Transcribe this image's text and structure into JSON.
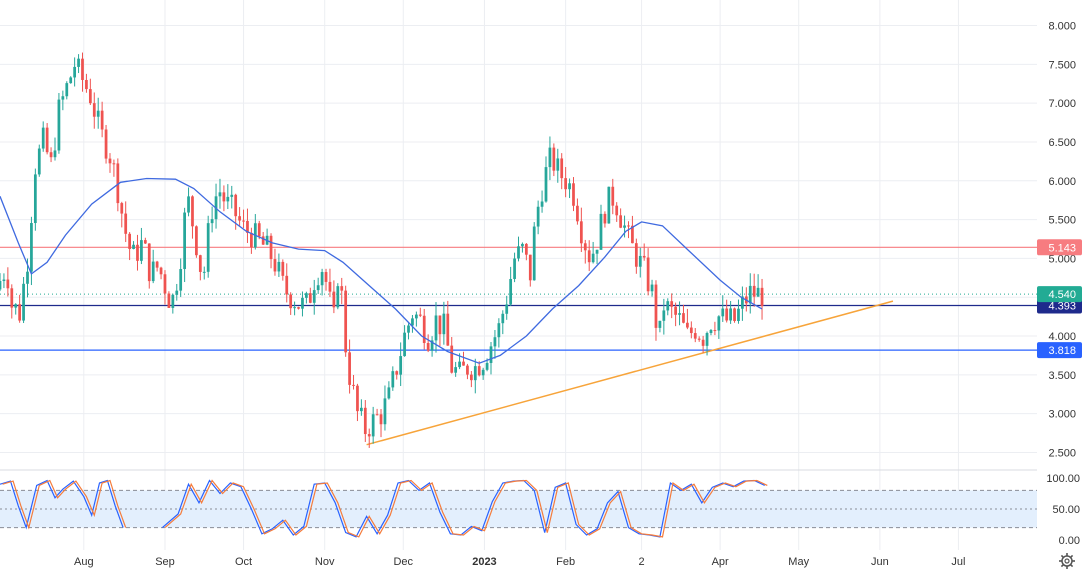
{
  "chart_data": {
    "type": "candlestick",
    "price_axis": {
      "range": [
        2.3,
        8.2
      ],
      "ticks": [
        "8.000",
        "7.500",
        "7.000",
        "6.500",
        "6.000",
        "5.500",
        "5.000",
        "4.500",
        "4.000",
        "3.500",
        "3.000",
        "2.500"
      ]
    },
    "time_axis": {
      "range": [
        "2022-06-30",
        "2023-07-31"
      ],
      "ticks": [
        {
          "label": "Aug",
          "date": "2022-08-01",
          "bold": false
        },
        {
          "label": "Sep",
          "date": "2022-09-01",
          "bold": false
        },
        {
          "label": "Oct",
          "date": "2022-10-01",
          "bold": false
        },
        {
          "label": "Nov",
          "date": "2022-11-01",
          "bold": false
        },
        {
          "label": "Dec",
          "date": "2022-12-01",
          "bold": false
        },
        {
          "label": "2023",
          "date": "2023-01-01",
          "bold": true
        },
        {
          "label": "Feb",
          "date": "2023-02-01",
          "bold": false
        },
        {
          "label": "2",
          "date": "2023-03-02",
          "bold": false
        },
        {
          "label": "Apr",
          "date": "2023-04-01",
          "bold": false
        },
        {
          "label": "May",
          "date": "2023-05-01",
          "bold": false
        },
        {
          "label": "Jun",
          "date": "2023-06-01",
          "bold": false
        },
        {
          "label": "Jul",
          "date": "2023-07-01",
          "bold": false
        }
      ]
    },
    "price_path": [
      [
        "2022-06-30",
        4.6
      ],
      [
        "2022-07-04",
        4.9
      ],
      [
        "2022-07-06",
        4.4
      ],
      [
        "2022-07-09",
        4.3
      ],
      [
        "2022-07-12",
        5.0
      ],
      [
        "2022-07-15",
        6.2
      ],
      [
        "2022-07-18",
        6.5
      ],
      [
        "2022-07-21",
        6.2
      ],
      [
        "2022-07-24",
        6.9
      ],
      [
        "2022-07-27",
        7.2
      ],
      [
        "2022-07-30",
        7.5
      ],
      [
        "2022-08-02",
        7.3
      ],
      [
        "2022-08-05",
        7.1
      ],
      [
        "2022-08-09",
        6.6
      ],
      [
        "2022-08-12",
        6.4
      ],
      [
        "2022-08-15",
        6.0
      ],
      [
        "2022-08-18",
        5.4
      ],
      [
        "2022-08-21",
        5.0
      ],
      [
        "2022-08-25",
        5.2
      ],
      [
        "2022-08-28",
        4.8
      ],
      [
        "2022-08-31",
        4.9
      ],
      [
        "2022-09-03",
        4.6
      ],
      [
        "2022-09-05",
        4.4
      ],
      [
        "2022-09-08",
        4.9
      ],
      [
        "2022-09-11",
        5.8
      ],
      [
        "2022-09-14",
        5.3
      ],
      [
        "2022-09-17",
        4.7
      ],
      [
        "2022-09-20",
        5.6
      ],
      [
        "2022-09-23",
        5.9
      ],
      [
        "2022-09-26",
        5.7
      ],
      [
        "2022-09-29",
        5.6
      ],
      [
        "2022-10-02",
        5.4
      ],
      [
        "2022-10-06",
        5.3
      ],
      [
        "2022-10-09",
        5.2
      ],
      [
        "2022-10-12",
        5.1
      ],
      [
        "2022-10-15",
        4.9
      ],
      [
        "2022-10-18",
        4.6
      ],
      [
        "2022-10-21",
        4.5
      ],
      [
        "2022-10-24",
        4.4
      ],
      [
        "2022-10-27",
        4.4
      ],
      [
        "2022-10-30",
        4.8
      ],
      [
        "2022-11-02",
        4.9
      ],
      [
        "2022-11-04",
        4.5
      ],
      [
        "2022-11-06",
        4.2
      ],
      [
        "2022-11-08",
        5.0
      ],
      [
        "2022-11-10",
        4.0
      ],
      [
        "2022-11-12",
        3.5
      ],
      [
        "2022-11-15",
        3.0
      ],
      [
        "2022-11-18",
        2.8
      ],
      [
        "2022-11-21",
        2.9
      ],
      [
        "2022-11-24",
        3.0
      ],
      [
        "2022-11-27",
        3.2
      ],
      [
        "2022-11-30",
        3.6
      ],
      [
        "2022-12-03",
        4.0
      ],
      [
        "2022-12-06",
        4.3
      ],
      [
        "2022-12-09",
        4.2
      ],
      [
        "2022-12-12",
        4.0
      ],
      [
        "2022-12-15",
        4.2
      ],
      [
        "2022-12-18",
        4.1
      ],
      [
        "2022-12-21",
        3.6
      ],
      [
        "2022-12-24",
        3.5
      ],
      [
        "2022-12-27",
        3.6
      ],
      [
        "2022-12-30",
        3.6
      ],
      [
        "2023-01-02",
        3.7
      ],
      [
        "2023-01-05",
        3.9
      ],
      [
        "2023-01-08",
        4.1
      ],
      [
        "2023-01-11",
        4.5
      ],
      [
        "2023-01-14",
        5.0
      ],
      [
        "2023-01-17",
        5.1
      ],
      [
        "2023-01-20",
        4.8
      ],
      [
        "2023-01-22",
        5.5
      ],
      [
        "2023-01-25",
        6.0
      ],
      [
        "2023-01-28",
        6.3
      ],
      [
        "2023-01-31",
        6.1
      ],
      [
        "2023-02-03",
        6.0
      ],
      [
        "2023-02-06",
        5.8
      ],
      [
        "2023-02-09",
        5.3
      ],
      [
        "2023-02-12",
        5.0
      ],
      [
        "2023-02-15",
        5.3
      ],
      [
        "2023-02-18",
        5.7
      ],
      [
        "2023-02-21",
        5.8
      ],
      [
        "2023-02-24",
        5.5
      ],
      [
        "2023-02-27",
        5.2
      ],
      [
        "2023-03-02",
        5.0
      ],
      [
        "2023-03-05",
        4.8
      ],
      [
        "2023-03-08",
        4.5
      ],
      [
        "2023-03-10",
        3.9
      ],
      [
        "2023-03-12",
        4.4
      ],
      [
        "2023-03-15",
        4.3
      ],
      [
        "2023-03-18",
        4.2
      ],
      [
        "2023-03-21",
        4.0
      ],
      [
        "2023-03-24",
        4.1
      ],
      [
        "2023-03-27",
        4.0
      ],
      [
        "2023-03-30",
        4.2
      ],
      [
        "2023-04-02",
        4.25
      ],
      [
        "2023-04-05",
        4.2
      ],
      [
        "2023-04-08",
        4.2
      ],
      [
        "2023-04-11",
        4.4
      ],
      [
        "2023-04-14",
        4.55
      ],
      [
        "2023-04-18",
        4.54
      ]
    ],
    "moving_average": [
      [
        "2022-06-30",
        5.8
      ],
      [
        "2022-07-07",
        5.2
      ],
      [
        "2022-07-12",
        4.8
      ],
      [
        "2022-07-18",
        4.95
      ],
      [
        "2022-07-25",
        5.3
      ],
      [
        "2022-08-04",
        5.7
      ],
      [
        "2022-08-15",
        5.98
      ],
      [
        "2022-08-25",
        6.03
      ],
      [
        "2022-09-05",
        6.02
      ],
      [
        "2022-09-12",
        5.9
      ],
      [
        "2022-09-22",
        5.6
      ],
      [
        "2022-10-02",
        5.35
      ],
      [
        "2022-10-12",
        5.2
      ],
      [
        "2022-10-22",
        5.12
      ],
      [
        "2022-11-01",
        5.1
      ],
      [
        "2022-11-08",
        4.95
      ],
      [
        "2022-11-18",
        4.65
      ],
      [
        "2022-11-28",
        4.35
      ],
      [
        "2022-12-08",
        4.0
      ],
      [
        "2022-12-18",
        3.8
      ],
      [
        "2022-12-30",
        3.65
      ],
      [
        "2023-01-07",
        3.75
      ],
      [
        "2023-01-17",
        4.0
      ],
      [
        "2023-01-27",
        4.35
      ],
      [
        "2023-02-06",
        4.65
      ],
      [
        "2023-02-16",
        5.02
      ],
      [
        "2023-02-24",
        5.35
      ],
      [
        "2023-03-02",
        5.47
      ],
      [
        "2023-03-10",
        5.42
      ],
      [
        "2023-03-20",
        5.1
      ],
      [
        "2023-04-01",
        4.72
      ],
      [
        "2023-04-09",
        4.5
      ],
      [
        "2023-04-17",
        4.35
      ]
    ],
    "trendline": {
      "from": [
        "2022-11-17",
        2.6
      ],
      "to": [
        "2023-06-06",
        4.45
      ]
    },
    "horizontal_levels": [
      {
        "value": 5.143,
        "label": "5.143",
        "color": "#f77c80"
      },
      {
        "value": 4.393,
        "label": "4.393",
        "color": "#1e2a8c"
      },
      {
        "value": 3.818,
        "label": "3.818",
        "color": "#2962ff"
      }
    ],
    "last_price": {
      "value": 4.54,
      "label": "4.540",
      "color": "#22ab94"
    },
    "oscillator": {
      "type": "stochastic",
      "range": [
        0,
        100
      ],
      "ticks": [
        "100.00",
        "50.00",
        "0.00"
      ],
      "overbought": 80,
      "oversold": 20,
      "k_path": [
        [
          "2022-06-30",
          90
        ],
        [
          "2022-07-04",
          95
        ],
        [
          "2022-07-07",
          55
        ],
        [
          "2022-07-10",
          20
        ],
        [
          "2022-07-14",
          88
        ],
        [
          "2022-07-18",
          96
        ],
        [
          "2022-07-21",
          68
        ],
        [
          "2022-07-24",
          82
        ],
        [
          "2022-07-28",
          95
        ],
        [
          "2022-08-01",
          70
        ],
        [
          "2022-08-04",
          40
        ],
        [
          "2022-08-07",
          92
        ],
        [
          "2022-08-10",
          96
        ],
        [
          "2022-08-13",
          55
        ],
        [
          "2022-08-16",
          20
        ]
      ],
      "k_path_2": [
        [
          "2022-08-31",
          20
        ],
        [
          "2022-09-06",
          42
        ],
        [
          "2022-09-10",
          90
        ],
        [
          "2022-09-14",
          60
        ],
        [
          "2022-09-18",
          96
        ],
        [
          "2022-09-22",
          75
        ],
        [
          "2022-09-26",
          92
        ],
        [
          "2022-09-30",
          86
        ],
        [
          "2022-10-04",
          50
        ],
        [
          "2022-10-08",
          10
        ],
        [
          "2022-10-12",
          18
        ],
        [
          "2022-10-16",
          32
        ],
        [
          "2022-10-20",
          8
        ],
        [
          "2022-10-24",
          22
        ],
        [
          "2022-10-28",
          90
        ],
        [
          "2022-11-01",
          92
        ],
        [
          "2022-11-05",
          60
        ],
        [
          "2022-11-09",
          12
        ],
        [
          "2022-11-13",
          5
        ],
        [
          "2022-11-17",
          38
        ],
        [
          "2022-11-21",
          10
        ],
        [
          "2022-11-25",
          40
        ],
        [
          "2022-11-29",
          92
        ],
        [
          "2022-12-03",
          96
        ],
        [
          "2022-12-07",
          80
        ],
        [
          "2022-12-11",
          92
        ],
        [
          "2022-12-15",
          45
        ],
        [
          "2022-12-19",
          10
        ],
        [
          "2022-12-23",
          8
        ],
        [
          "2022-12-27",
          22
        ],
        [
          "2022-12-31",
          15
        ],
        [
          "2023-01-04",
          62
        ],
        [
          "2023-01-08",
          92
        ],
        [
          "2023-01-12",
          95
        ],
        [
          "2023-01-16",
          96
        ],
        [
          "2023-01-20",
          80
        ],
        [
          "2023-01-24",
          12
        ],
        [
          "2023-01-28",
          85
        ],
        [
          "2023-02-01",
          92
        ],
        [
          "2023-02-05",
          25
        ],
        [
          "2023-02-09",
          8
        ],
        [
          "2023-02-13",
          18
        ],
        [
          "2023-02-17",
          60
        ],
        [
          "2023-02-21",
          78
        ],
        [
          "2023-02-25",
          20
        ],
        [
          "2023-03-01",
          10
        ],
        [
          "2023-03-05",
          8
        ],
        [
          "2023-03-09",
          5
        ],
        [
          "2023-03-13",
          92
        ],
        [
          "2023-03-17",
          80
        ],
        [
          "2023-03-21",
          90
        ],
        [
          "2023-03-25",
          60
        ],
        [
          "2023-03-29",
          85
        ],
        [
          "2023-04-02",
          92
        ],
        [
          "2023-04-06",
          86
        ],
        [
          "2023-04-10",
          95
        ],
        [
          "2023-04-14",
          96
        ],
        [
          "2023-04-18",
          88
        ]
      ]
    }
  },
  "colors": {
    "up": "#26a69a",
    "down": "#ef5350",
    "ma": "#3f6ae0",
    "trend": "#f7a43a",
    "k_line": "#2962ff",
    "d_line": "#f57c3c",
    "osc_band": "#e3effd",
    "grid": "#eceef2"
  },
  "toolbar": {
    "settings_icon": "gear-icon"
  }
}
